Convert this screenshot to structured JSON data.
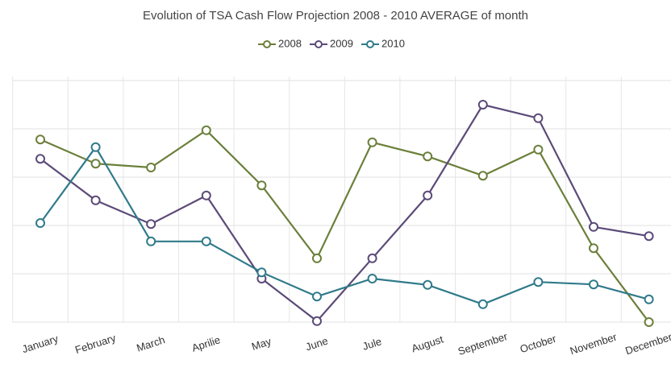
{
  "chart_data": {
    "type": "line",
    "title": "Evolution of  TSA Cash Flow Projection 2008 - 2010 AVERAGE of month",
    "categories": [
      "January",
      "February",
      "March",
      "Aprilie",
      "May",
      "June",
      "Jule",
      "August",
      "September",
      "October",
      "November",
      "December"
    ],
    "series": [
      {
        "name": "2008",
        "color": "#6b7f3a",
        "values": [
          3.78,
          3.28,
          3.2,
          3.97,
          2.83,
          1.32,
          3.72,
          3.43,
          3.03,
          3.57,
          1.53,
          0
        ]
      },
      {
        "name": "2009",
        "color": "#5b4a78",
        "values": [
          3.38,
          2.52,
          2.03,
          2.62,
          0.9,
          0.02,
          1.32,
          2.62,
          4.5,
          4.22,
          1.97,
          1.78
        ]
      },
      {
        "name": "2010",
        "color": "#2f7a8a",
        "values": [
          2.05,
          3.62,
          1.67,
          1.67,
          1.03,
          0.53,
          0.9,
          0.77,
          0.37,
          0.83,
          0.78,
          0.47
        ]
      }
    ],
    "ylim": [
      0,
      5
    ],
    "yticks": [
      0,
      1,
      2,
      3,
      4,
      5
    ],
    "grid": true,
    "legend": "top"
  }
}
